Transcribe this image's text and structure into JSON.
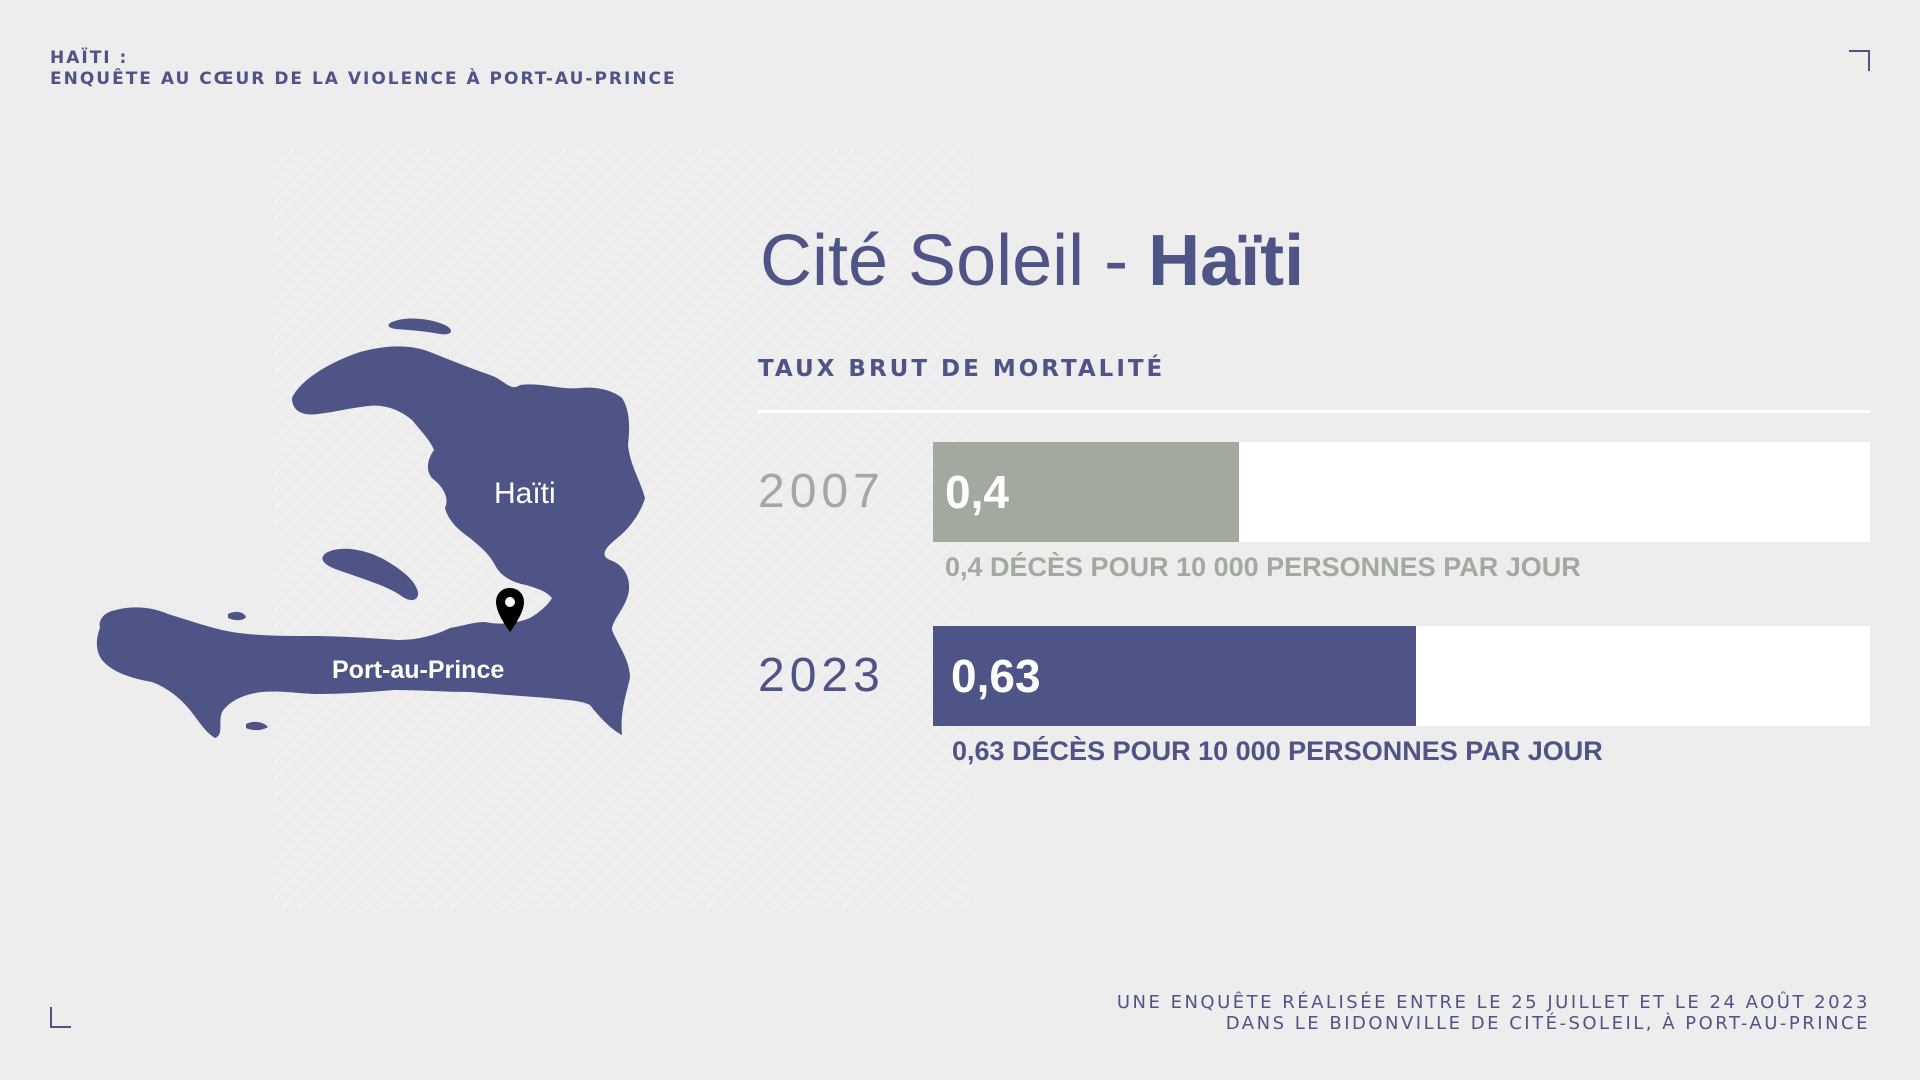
{
  "header": {
    "line1": "HAÏTI :",
    "line2": "ENQUÊTE AU CŒUR DE LA VIOLENCE À PORT-AU-PRINCE"
  },
  "map": {
    "country_label": "Haïti",
    "city_label": "Port-au-Prince",
    "pin_icon": "location-pin-icon"
  },
  "title": {
    "light": "Cité Soleil - ",
    "bold": "Haïti"
  },
  "colors": {
    "accent": "#4f5487",
    "muted": "#a2aaa0",
    "track": "#ffffff",
    "background": "#ededed"
  },
  "chart_data": {
    "type": "bar",
    "title": "TAUX BRUT DE MORTALITÉ",
    "categories": [
      "2007",
      "2023"
    ],
    "values": [
      0.4,
      0.63
    ],
    "value_labels": [
      "0,4",
      "0,63"
    ],
    "captions": [
      "0,4 DÉCÈS POUR 10 000 PERSONNES PAR JOUR",
      "0,63 DÉCÈS POUR 10 000 PERSONNES PAR JOUR"
    ],
    "bar_colors": [
      "#a2aaa0",
      "#4f5487"
    ],
    "xlim": [
      0,
      1
    ],
    "orientation": "horizontal"
  },
  "footer": {
    "line1": "UNE ENQUÊTE RÉALISÉE ENTRE LE 25 JUILLET ET LE 24 AOÛT 2023",
    "line2": "DANS LE BIDONVILLE DE CITÉ-SOLEIL, À PORT-AU-PRINCE"
  }
}
